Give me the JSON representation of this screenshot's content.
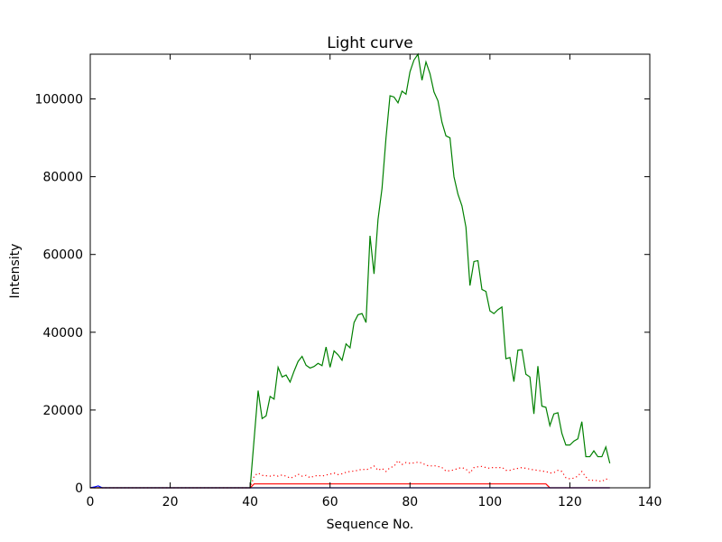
{
  "chart_data": {
    "type": "line",
    "title": "Light curve",
    "xlabel": "Sequence No.",
    "ylabel": "Intensity",
    "xlim": [
      0,
      140
    ],
    "ylim": [
      0,
      111500
    ],
    "xticks": [
      0,
      20,
      40,
      60,
      80,
      100,
      120,
      140
    ],
    "yticks": [
      0,
      20000,
      40000,
      60000,
      80000,
      100000
    ],
    "grid": false,
    "legend": "none",
    "series": [
      {
        "color": "#008000",
        "style": "solid",
        "x": [
          0,
          2,
          4,
          6,
          8,
          10,
          12,
          14,
          16,
          18,
          20,
          22,
          24,
          26,
          28,
          30,
          32,
          34,
          36,
          38,
          40,
          41,
          42,
          43,
          44,
          45,
          46,
          47,
          48,
          49,
          50,
          51,
          52,
          53,
          54,
          55,
          56,
          57,
          58,
          59,
          60,
          61,
          62,
          63,
          64,
          65,
          66,
          67,
          68,
          69,
          70,
          71,
          72,
          73,
          74,
          75,
          76,
          77,
          78,
          79,
          80,
          81,
          82,
          83,
          84,
          85,
          86,
          87,
          88,
          89,
          90,
          91,
          92,
          93,
          94,
          95,
          96,
          97,
          98,
          99,
          100,
          101,
          102,
          103,
          104,
          105,
          106,
          107,
          108,
          109,
          110,
          111,
          112,
          113,
          114,
          115,
          116,
          117,
          118,
          119,
          120,
          121,
          122,
          123,
          124,
          125,
          126,
          127,
          128,
          129,
          130
        ],
        "values": [
          0,
          0,
          0,
          0,
          0,
          0,
          0,
          0,
          0,
          0,
          0,
          0,
          0,
          0,
          0,
          0,
          0,
          0,
          0,
          0,
          0,
          12500,
          25000,
          17800,
          18500,
          23500,
          22800,
          31000,
          28500,
          29000,
          27200,
          30000,
          32500,
          33800,
          31500,
          30800,
          31200,
          32000,
          31400,
          36200,
          31000,
          35200,
          34200,
          32800,
          37000,
          36000,
          42500,
          44500,
          44800,
          42500,
          64800,
          55000,
          69000,
          77000,
          90000,
          100800,
          100500,
          99000,
          102000,
          101200,
          107000,
          110000,
          111500,
          104800,
          109500,
          106500,
          101800,
          99500,
          94000,
          90500,
          90000,
          80000,
          75500,
          72500,
          67000,
          52000,
          58200,
          58400,
          51000,
          50500,
          45500,
          44800,
          45800,
          46500,
          33200,
          33500,
          27300,
          35400,
          35500,
          29200,
          28500,
          19000,
          31300,
          21000,
          20700,
          16000,
          19000,
          19300,
          14000,
          11000,
          11000,
          12000,
          12600,
          17000,
          8000,
          8000,
          9500,
          8000,
          8000,
          10500,
          6300
        ]
      },
      {
        "color": "#ff0000",
        "style": "dotted",
        "x": [
          0,
          40,
          41,
          42,
          43,
          44,
          45,
          46,
          47,
          48,
          49,
          50,
          51,
          52,
          53,
          54,
          55,
          56,
          57,
          58,
          59,
          60,
          61,
          62,
          63,
          64,
          65,
          66,
          67,
          68,
          69,
          70,
          71,
          72,
          73,
          74,
          75,
          76,
          77,
          78,
          79,
          80,
          81,
          82,
          83,
          84,
          85,
          86,
          87,
          88,
          89,
          90,
          91,
          92,
          93,
          94,
          95,
          96,
          97,
          98,
          99,
          100,
          101,
          102,
          103,
          104,
          105,
          106,
          107,
          108,
          109,
          110,
          111,
          112,
          113,
          114,
          115,
          116,
          117,
          118,
          119,
          120,
          121,
          122,
          123,
          124,
          125,
          126,
          127,
          128,
          129,
          130
        ],
        "values": [
          0,
          0,
          3000,
          3800,
          3200,
          3100,
          3000,
          3200,
          3000,
          3300,
          3000,
          2500,
          2800,
          3500,
          3000,
          3200,
          2600,
          3000,
          3200,
          3000,
          3300,
          3500,
          3800,
          3400,
          3600,
          4000,
          4200,
          4300,
          4500,
          4800,
          4600,
          5000,
          5600,
          4500,
          5000,
          4200,
          5200,
          5500,
          7000,
          6000,
          6500,
          6300,
          6400,
          6600,
          6400,
          5800,
          5600,
          5700,
          5500,
          5200,
          4300,
          4400,
          4600,
          5000,
          5200,
          4800,
          3800,
          5200,
          5400,
          5500,
          5200,
          5000,
          5300,
          5100,
          5300,
          4500,
          4500,
          4800,
          5000,
          5200,
          5000,
          4800,
          4600,
          4500,
          4300,
          4200,
          3800,
          3900,
          4500,
          4200,
          2600,
          2300,
          2500,
          3000,
          4200,
          2800,
          1800,
          2000,
          1800,
          1600,
          2300,
          2000
        ]
      },
      {
        "color": "#ff0000",
        "style": "solid",
        "x": [
          0,
          40,
          41,
          42,
          44,
          50,
          60,
          70,
          80,
          90,
          100,
          110,
          114,
          115,
          116,
          120,
          130
        ],
        "values": [
          0,
          0,
          1000,
          1000,
          1000,
          1000,
          1000,
          1000,
          1000,
          1000,
          1000,
          1000,
          1000,
          0,
          0,
          0,
          0
        ]
      },
      {
        "color": "#0000ff",
        "style": "solid",
        "x": [
          0,
          1,
          2,
          3,
          130
        ],
        "values": [
          0,
          200,
          500,
          0,
          0
        ]
      }
    ]
  }
}
